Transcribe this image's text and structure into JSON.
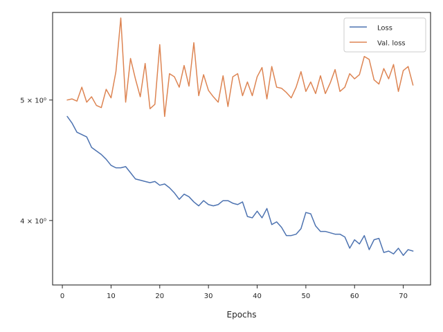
{
  "chart_data": {
    "type": "line",
    "title": "",
    "xlabel": "Epochs",
    "ylabel": "",
    "x_scale": "linear",
    "y_scale": "log",
    "xlim": [
      -2,
      75.6
    ],
    "ylim": [
      3.55,
      5.88
    ],
    "x_ticks": [
      0,
      10,
      20,
      30,
      40,
      50,
      60,
      70
    ],
    "x_tick_labels": [
      "0",
      "10",
      "20",
      "30",
      "40",
      "50",
      "60",
      "70"
    ],
    "y_ticks": [
      4.0,
      5.0
    ],
    "y_tick_labels": [
      "4 × 10⁰",
      "5 × 10⁰"
    ],
    "grid": false,
    "legend_position": "top-right",
    "x": [
      1,
      2,
      3,
      4,
      5,
      6,
      7,
      8,
      9,
      10,
      11,
      12,
      13,
      14,
      15,
      16,
      17,
      18,
      19,
      20,
      21,
      22,
      23,
      24,
      25,
      26,
      27,
      28,
      29,
      30,
      31,
      32,
      33,
      34,
      35,
      36,
      37,
      38,
      39,
      40,
      41,
      42,
      43,
      44,
      45,
      46,
      47,
      48,
      49,
      50,
      51,
      52,
      53,
      54,
      55,
      56,
      57,
      58,
      59,
      60,
      61,
      62,
      63,
      64,
      65,
      66,
      67,
      68,
      69,
      70,
      71,
      72
    ],
    "series": [
      {
        "name": "Loss",
        "color": "#4c72b0",
        "values": [
          4.85,
          4.79,
          4.71,
          4.69,
          4.67,
          4.58,
          4.55,
          4.52,
          4.48,
          4.43,
          4.41,
          4.41,
          4.42,
          4.37,
          4.32,
          4.31,
          4.3,
          4.29,
          4.3,
          4.27,
          4.28,
          4.25,
          4.21,
          4.16,
          4.2,
          4.18,
          4.14,
          4.11,
          4.15,
          4.12,
          4.11,
          4.12,
          4.15,
          4.15,
          4.13,
          4.12,
          4.14,
          4.03,
          4.02,
          4.07,
          4.02,
          4.09,
          3.97,
          3.99,
          3.95,
          3.89,
          3.89,
          3.9,
          3.94,
          4.06,
          4.05,
          3.96,
          3.92,
          3.92,
          3.91,
          3.9,
          3.9,
          3.88,
          3.8,
          3.86,
          3.83,
          3.89,
          3.79,
          3.86,
          3.87,
          3.77,
          3.78,
          3.76,
          3.8,
          3.75,
          3.79,
          3.78
        ]
      },
      {
        "name": "Val. loss",
        "color": "#dd8452",
        "values": [
          5.0,
          5.01,
          4.99,
          5.12,
          4.98,
          5.03,
          4.95,
          4.93,
          5.1,
          5.02,
          5.27,
          5.82,
          4.98,
          5.4,
          5.2,
          5.03,
          5.35,
          4.92,
          4.96,
          5.54,
          4.85,
          5.25,
          5.22,
          5.12,
          5.33,
          5.13,
          5.56,
          5.04,
          5.24,
          5.09,
          5.03,
          4.98,
          5.23,
          4.94,
          5.22,
          5.25,
          5.04,
          5.17,
          5.04,
          5.22,
          5.31,
          5.01,
          5.32,
          5.12,
          5.11,
          5.07,
          5.02,
          5.12,
          5.27,
          5.08,
          5.17,
          5.06,
          5.23,
          5.06,
          5.16,
          5.29,
          5.08,
          5.12,
          5.25,
          5.2,
          5.24,
          5.42,
          5.39,
          5.19,
          5.15,
          5.3,
          5.2,
          5.34,
          5.08,
          5.28,
          5.32,
          5.14
        ]
      }
    ]
  }
}
